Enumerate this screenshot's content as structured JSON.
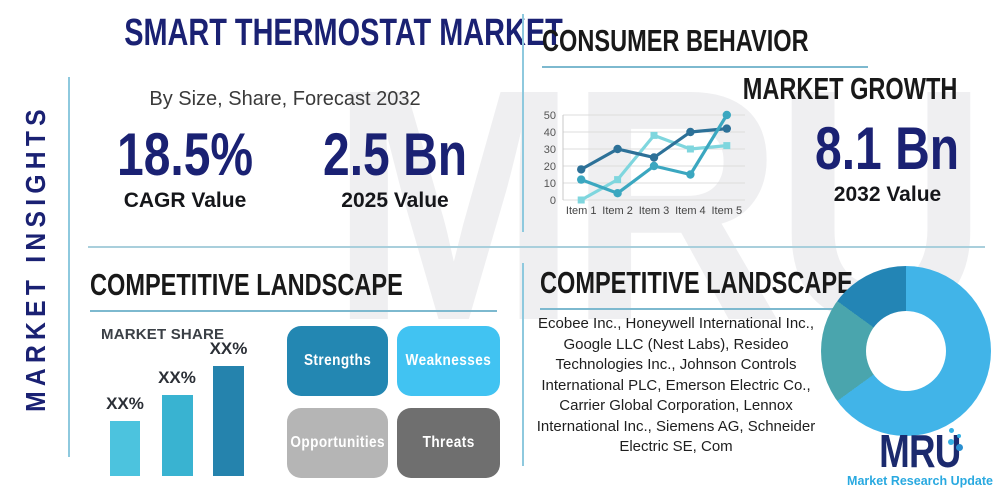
{
  "brand": {
    "logo_text": "MRU",
    "logo_tagline": "Market Research Update",
    "watermark": "MRU",
    "accent_navy": "#1a2173",
    "accent_cyan": "#29a9e0",
    "divider_blue": "#8ec9de"
  },
  "sidebar": {
    "vertical_label": "MARKET INSIGHTS"
  },
  "header": {
    "title": "SMART THERMOSTAT MARKET",
    "subtitle": "By Size, Share, Forecast 2032"
  },
  "stats": [
    {
      "value": "18.5%",
      "label": "CAGR Value"
    },
    {
      "value": "2.5 Bn",
      "label": "2025 Value"
    },
    {
      "value": "8.1 Bn",
      "label": "2032 Value"
    }
  ],
  "sections": {
    "consumer_behavior": "CONSUMER BEHAVIOR",
    "market_growth": "MARKET GROWTH",
    "competitive_landscape_left": "COMPETITIVE LANDSCAPE",
    "competitive_landscape_right": "COMPETITIVE LANDSCAPE",
    "market_share": "MARKET SHARE"
  },
  "swot": [
    {
      "label": "Strengths",
      "color": "#2387b2"
    },
    {
      "label": "Weaknesses",
      "color": "#41c3f2"
    },
    {
      "label": "Opportunities",
      "color": "#b5b5b5"
    },
    {
      "label": "Threats",
      "color": "#6f6f6f"
    }
  ],
  "companies": {
    "text": "Ecobee Inc., Honeywell International Inc., Google LLC (Nest Labs), Resideo Technologies Inc., Johnson Controls International PLC, Emerson Electric Co., Carrier Global Corporation, Lennox International Inc., Siemens AG, Schneider Electric SE, Com"
  },
  "chart_data": [
    {
      "type": "line",
      "title": "CONSUMER BEHAVIOR / MARKET GROWTH trend",
      "x_labels": [
        "Item 1",
        "Item 2",
        "Item 3",
        "Item 4",
        "Item 5"
      ],
      "series": [
        {
          "name": "series-dark-blue",
          "color": "#2d7198",
          "marker": "circle",
          "values": [
            18,
            30,
            25,
            40,
            42
          ]
        },
        {
          "name": "series-teal",
          "color": "#3ba7c0",
          "marker": "circle",
          "values": [
            12,
            4,
            20,
            15,
            50
          ]
        },
        {
          "name": "series-light-cyan",
          "color": "#7fd6de",
          "marker": "square",
          "values": [
            0,
            12,
            38,
            30,
            32
          ]
        }
      ],
      "draw_order": [
        2,
        0,
        1
      ],
      "ylim": [
        0,
        50
      ],
      "yticks": [
        0,
        10,
        20,
        30,
        40,
        50
      ],
      "grid": true,
      "legend": "none"
    },
    {
      "type": "bar",
      "title": "MARKET SHARE",
      "labels": [
        "XX%",
        "XX%",
        "XX%"
      ],
      "values": [
        25,
        37,
        50
      ],
      "colors": [
        "#4cc3de",
        "#39b3d1",
        "#2583ad"
      ],
      "ylim": [
        0,
        60
      ],
      "note_labels_masked": "XX%"
    },
    {
      "type": "pie",
      "donut": true,
      "start_angle_deg": 0,
      "direction": "clockwise",
      "slices": [
        {
          "name": "slice-light-blue",
          "value": 65,
          "color": "#41b4e8"
        },
        {
          "name": "slice-teal",
          "value": 20,
          "color": "#4aa5ad"
        },
        {
          "name": "slice-dark-blue",
          "value": 15,
          "color": "#2385b5"
        }
      ]
    }
  ]
}
